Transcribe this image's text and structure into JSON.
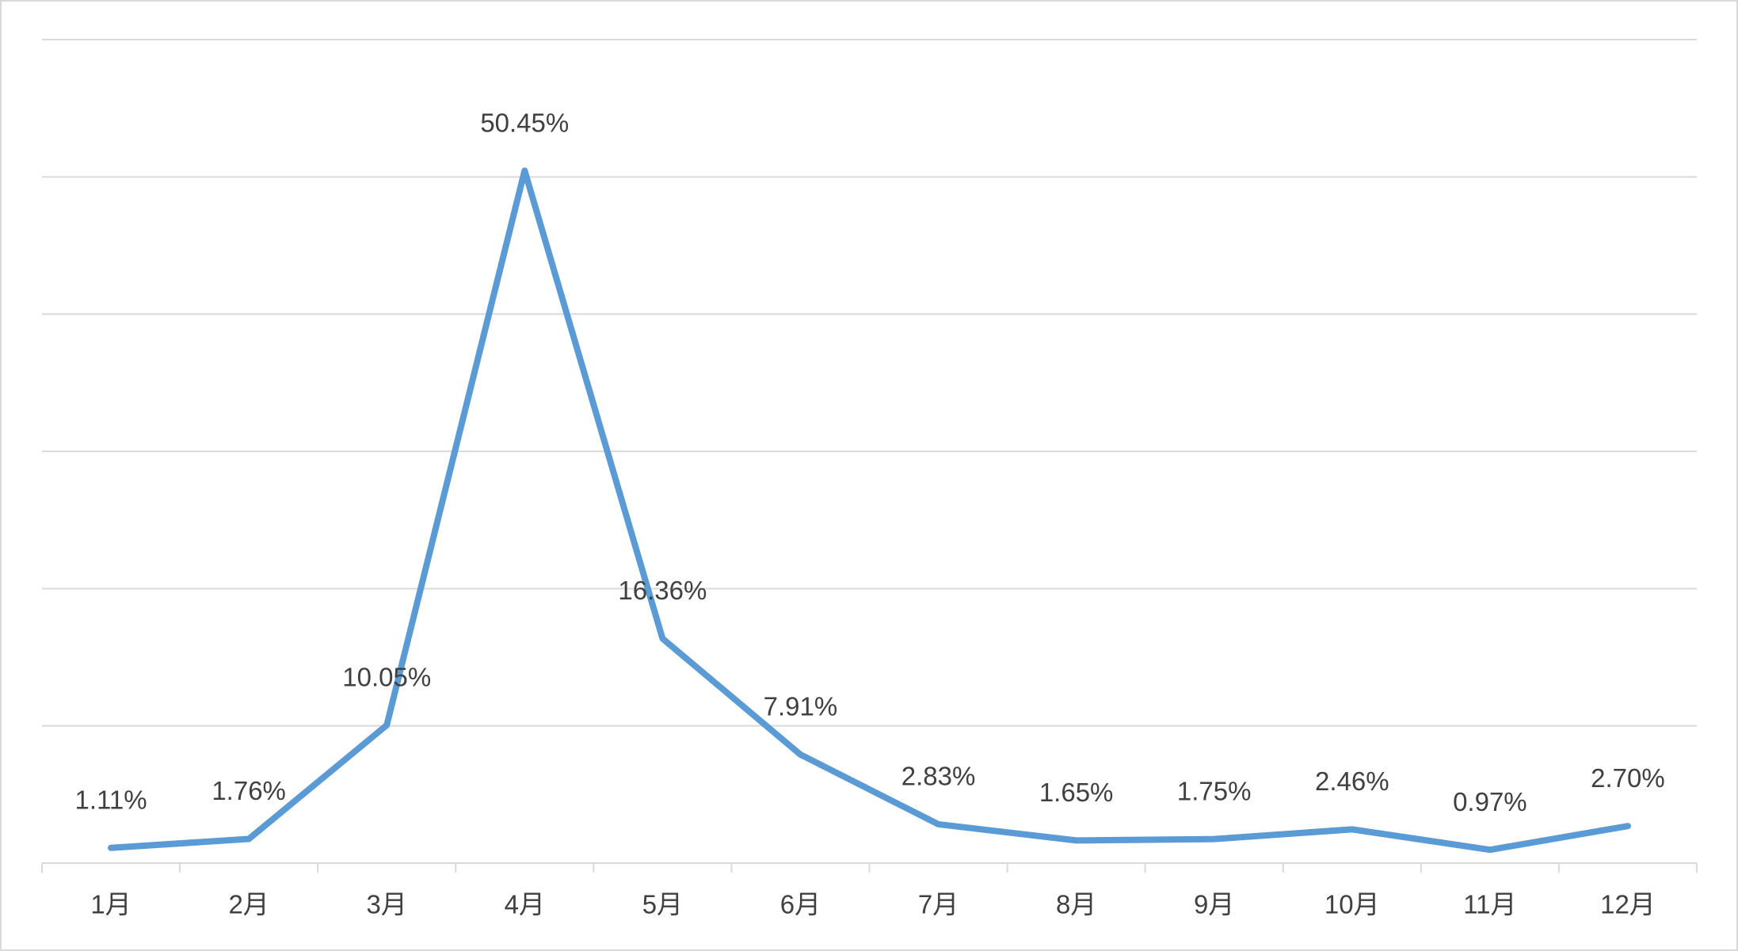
{
  "chart_data": {
    "type": "line",
    "categories": [
      "1月",
      "2月",
      "3月",
      "4月",
      "5月",
      "6月",
      "7月",
      "8月",
      "9月",
      "10月",
      "11月",
      "12月"
    ],
    "series": [
      {
        "color": "#5b9bd5",
        "values": [
          1.11,
          1.76,
          10.05,
          50.45,
          16.36,
          7.91,
          2.83,
          1.65,
          1.75,
          2.46,
          0.97,
          2.7
        ],
        "value_labels": [
          "1.11%",
          "1.76%",
          "10.05%",
          "50.45%",
          "16.36%",
          "7.91%",
          "2.83%",
          "1.65%",
          "1.75%",
          "2.46%",
          "0.97%",
          "2.70%"
        ]
      }
    ],
    "ylim": [
      0,
      60
    ],
    "yticks": [
      0,
      10,
      20,
      30,
      40,
      50,
      60
    ],
    "grid": true
  }
}
